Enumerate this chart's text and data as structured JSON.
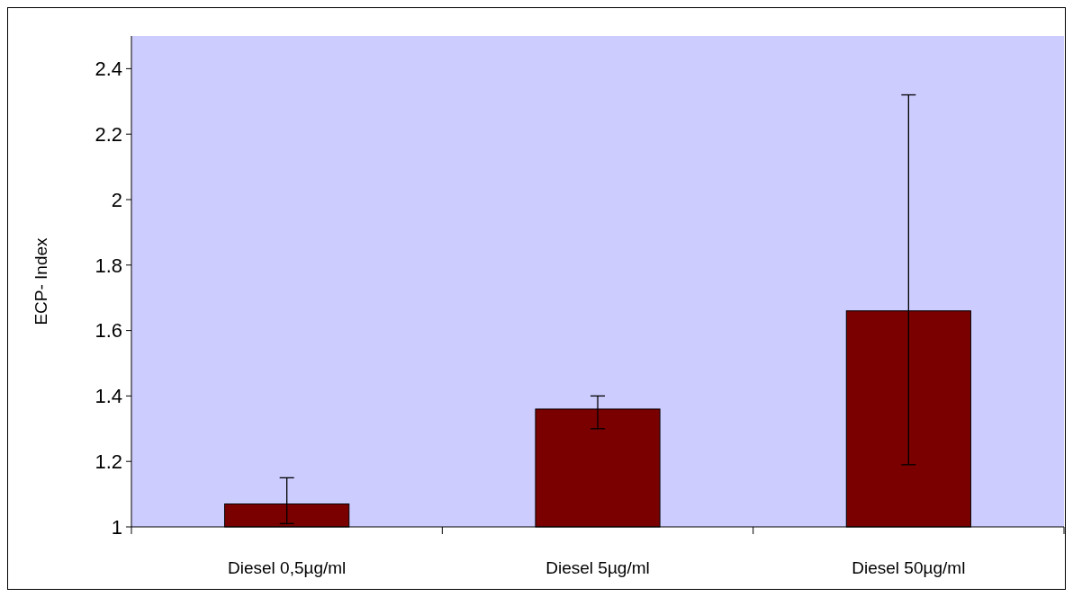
{
  "chart_data": {
    "type": "bar",
    "ylabel": "ECP- Index",
    "categories": [
      "Diesel 0,5µg/ml",
      "Diesel 5µg/ml",
      "Diesel 50µg/ml"
    ],
    "values": [
      1.07,
      1.36,
      1.66
    ],
    "errors": [
      [
        1.01,
        1.15
      ],
      [
        1.3,
        1.4
      ],
      [
        1.19,
        2.32
      ]
    ],
    "color": "#7a0000",
    "ylim": [
      1,
      2.5
    ],
    "yticks": [
      1,
      1.2,
      1.4,
      1.6,
      1.8,
      2,
      2.2,
      2.4
    ],
    "grid": false
  }
}
